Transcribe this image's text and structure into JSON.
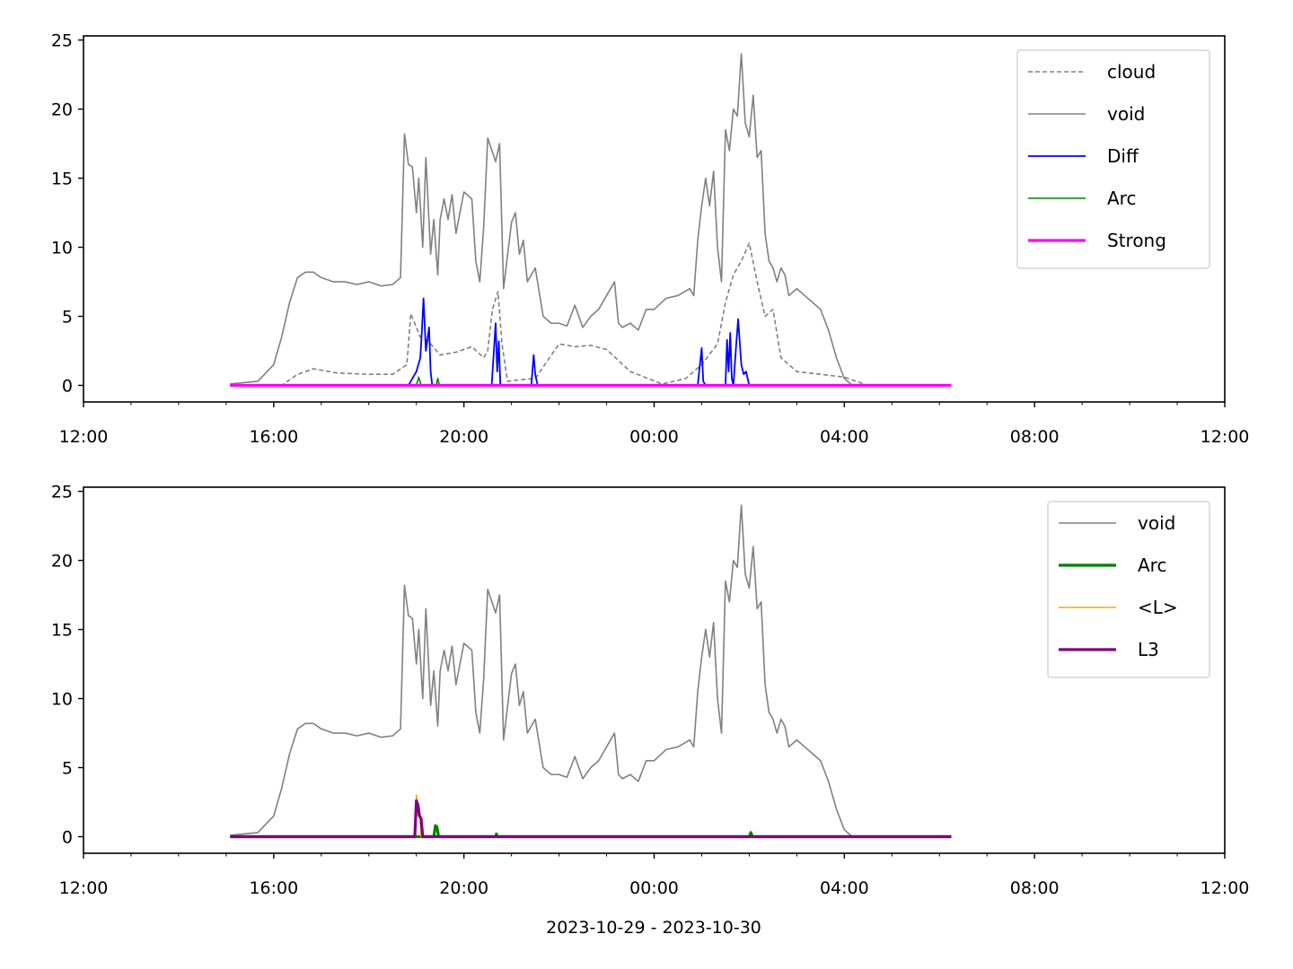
{
  "figure": {
    "xlabel": "2023-10-29 - 2023-10-30"
  },
  "chart_data": [
    {
      "type": "line",
      "xlabel": "",
      "ylabel": "",
      "xlim": [
        "2023-10-29 12:00",
        "2023-10-30 12:00"
      ],
      "ylim": [
        -1.2,
        25.3
      ],
      "xticks": [
        "12:00",
        "16:00",
        "20:00",
        "00:00",
        "04:00",
        "08:00",
        "12:00"
      ],
      "yticks": [
        0,
        5,
        10,
        15,
        20,
        25
      ],
      "legend_position": "top-right",
      "series": [
        {
          "name": "cloud",
          "color": "#808080",
          "style": "dashed",
          "x": [
            "15:05",
            "16:10",
            "16:30",
            "16:50",
            "17:20",
            "18:00",
            "18:30",
            "18:48",
            "18:53",
            "19:05",
            "19:15",
            "19:30",
            "19:50",
            "20:10",
            "20:25",
            "20:30",
            "20:36",
            "20:43",
            "20:48",
            "20:55",
            "21:10",
            "21:30",
            "22:00",
            "22:20",
            "22:40",
            "23:00",
            "23:30",
            "00:10",
            "00:40",
            "01:00",
            "01:20",
            "01:30",
            "01:40",
            "01:50",
            "02:00",
            "02:10",
            "02:20",
            "02:30",
            "02:40",
            "03:00",
            "03:30",
            "04:00",
            "04:30",
            "06:15"
          ],
          "y": [
            0.0,
            0.0,
            0.8,
            1.2,
            0.9,
            0.8,
            0.8,
            1.5,
            5.2,
            3.5,
            3.2,
            2.2,
            2.4,
            2.8,
            2.0,
            2.5,
            5.5,
            6.8,
            3.0,
            0.3,
            0.4,
            0.5,
            3.0,
            2.8,
            2.9,
            2.6,
            1.0,
            0.1,
            0.5,
            1.5,
            3.0,
            6.0,
            8.0,
            9.0,
            10.3,
            7.5,
            5.0,
            5.5,
            2.0,
            1.0,
            0.8,
            0.6,
            0.0,
            0.0
          ]
        },
        {
          "name": "void",
          "color": "#808080",
          "style": "solid",
          "x": [
            "15:05",
            "15:40",
            "16:00",
            "16:10",
            "16:20",
            "16:30",
            "16:40",
            "16:50",
            "17:00",
            "17:15",
            "17:30",
            "17:45",
            "18:00",
            "18:15",
            "18:30",
            "18:40",
            "18:45",
            "18:50",
            "18:55",
            "19:00",
            "19:03",
            "19:08",
            "19:12",
            "19:18",
            "19:22",
            "19:27",
            "19:30",
            "19:35",
            "19:40",
            "19:45",
            "19:50",
            "20:00",
            "20:10",
            "20:15",
            "20:20",
            "20:25",
            "20:30",
            "20:40",
            "20:45",
            "20:50",
            "21:00",
            "21:05",
            "21:10",
            "21:15",
            "21:20",
            "21:30",
            "21:40",
            "21:50",
            "22:00",
            "22:10",
            "22:20",
            "22:30",
            "22:40",
            "22:50",
            "23:00",
            "23:10",
            "23:15",
            "23:20",
            "23:30",
            "23:40",
            "23:50",
            "00:00",
            "00:15",
            "00:30",
            "00:45",
            "00:50",
            "00:55",
            "01:00",
            "01:05",
            "01:10",
            "01:15",
            "01:20",
            "01:25",
            "01:30",
            "01:35",
            "01:40",
            "01:45",
            "01:50",
            "01:55",
            "02:00",
            "02:05",
            "02:10",
            "02:15",
            "02:20",
            "02:25",
            "02:30",
            "02:35",
            "02:40",
            "02:45",
            "02:50",
            "03:00",
            "03:10",
            "03:20",
            "03:30",
            "03:40",
            "03:50",
            "04:00",
            "04:10",
            "04:20",
            "04:30",
            "04:40",
            "04:50",
            "05:00",
            "05:15",
            "05:30",
            "06:15"
          ],
          "y": [
            0.1,
            0.3,
            1.5,
            3.5,
            6.0,
            7.8,
            8.2,
            8.2,
            7.8,
            7.5,
            7.5,
            7.3,
            7.5,
            7.2,
            7.3,
            7.8,
            18.2,
            16.0,
            15.8,
            12.5,
            15.0,
            10.0,
            16.5,
            9.5,
            12.0,
            8.0,
            12.0,
            13.5,
            12.0,
            13.8,
            11.0,
            14.0,
            13.5,
            9.0,
            7.5,
            11.5,
            17.9,
            16.2,
            17.5,
            7.0,
            11.8,
            12.5,
            9.5,
            10.5,
            7.5,
            8.5,
            5.0,
            4.5,
            4.5,
            4.3,
            5.8,
            4.2,
            5.0,
            5.5,
            6.5,
            7.5,
            4.5,
            4.2,
            4.5,
            4.0,
            5.5,
            5.5,
            6.3,
            6.5,
            7.0,
            6.5,
            10.5,
            13.0,
            15.0,
            13.0,
            15.5,
            10.0,
            7.5,
            18.5,
            17.0,
            20.0,
            19.5,
            24.0,
            19.0,
            18.0,
            21.0,
            16.5,
            17.0,
            11.0,
            9.0,
            8.5,
            7.5,
            8.5,
            8.0,
            6.5,
            7.0,
            6.5,
            6.0,
            5.5,
            4.0,
            2.0,
            0.5,
            0.0,
            0.0,
            0.0,
            0.0,
            0.0,
            0.0,
            0.0,
            0.0,
            0.0
          ]
        },
        {
          "name": "Diff",
          "color": "#0000ff",
          "style": "solid",
          "x": [
            "15:05",
            "18:50",
            "18:55",
            "19:00",
            "19:05",
            "19:07",
            "19:09",
            "19:12",
            "19:16",
            "19:18",
            "19:20",
            "19:25",
            "20:35",
            "20:40",
            "20:42",
            "20:44",
            "20:46",
            "20:50",
            "21:25",
            "21:28",
            "21:30",
            "21:33",
            "00:55",
            "01:00",
            "01:02",
            "01:05",
            "01:30",
            "01:32",
            "01:34",
            "01:36",
            "01:38",
            "01:40",
            "01:43",
            "01:46",
            "01:50",
            "01:53",
            "01:56",
            "02:00",
            "02:03",
            "06:15"
          ],
          "y": [
            0.0,
            0.0,
            0.5,
            1.0,
            2.0,
            4.0,
            6.3,
            2.5,
            4.2,
            1.0,
            0.0,
            0.0,
            0.0,
            4.5,
            1.0,
            3.2,
            0.0,
            0.0,
            0.0,
            2.2,
            0.8,
            0.0,
            0.0,
            2.7,
            0.3,
            0.0,
            0.0,
            3.3,
            1.0,
            3.8,
            0.5,
            0.0,
            2.5,
            4.8,
            1.5,
            0.8,
            1.0,
            0.0,
            0.0,
            0.0
          ]
        },
        {
          "name": "Arc",
          "color": "#008000",
          "style": "solid",
          "x": [
            "15:05",
            "19:00",
            "19:03",
            "19:06",
            "19:25",
            "19:27",
            "19:29",
            "06:15"
          ],
          "y": [
            0.0,
            0.0,
            0.6,
            0.0,
            0.0,
            0.5,
            0.0,
            0.0
          ]
        },
        {
          "name": "Strong",
          "color": "#ff00ff",
          "style": "solid",
          "x": [
            "15:05",
            "06:15"
          ],
          "y": [
            0.0,
            0.0
          ]
        }
      ]
    },
    {
      "type": "line",
      "xlabel": "2023-10-29 - 2023-10-30",
      "ylabel": "",
      "xlim": [
        "2023-10-29 12:00",
        "2023-10-30 12:00"
      ],
      "ylim": [
        -1.2,
        25.3
      ],
      "xticks": [
        "12:00",
        "16:00",
        "20:00",
        "00:00",
        "04:00",
        "08:00",
        "12:00"
      ],
      "yticks": [
        0,
        5,
        10,
        15,
        20,
        25
      ],
      "legend_position": "top-right",
      "series": [
        {
          "name": "void",
          "color": "#808080",
          "style": "solid",
          "x": [
            "15:05",
            "15:40",
            "16:00",
            "16:10",
            "16:20",
            "16:30",
            "16:40",
            "16:50",
            "17:00",
            "17:15",
            "17:30",
            "17:45",
            "18:00",
            "18:15",
            "18:30",
            "18:40",
            "18:45",
            "18:50",
            "18:55",
            "19:00",
            "19:03",
            "19:08",
            "19:12",
            "19:18",
            "19:22",
            "19:27",
            "19:30",
            "19:35",
            "19:40",
            "19:45",
            "19:50",
            "20:00",
            "20:10",
            "20:15",
            "20:20",
            "20:25",
            "20:30",
            "20:40",
            "20:45",
            "20:50",
            "21:00",
            "21:05",
            "21:10",
            "21:15",
            "21:20",
            "21:30",
            "21:40",
            "21:50",
            "22:00",
            "22:10",
            "22:20",
            "22:30",
            "22:40",
            "22:50",
            "23:00",
            "23:10",
            "23:15",
            "23:20",
            "23:30",
            "23:40",
            "23:50",
            "00:00",
            "00:15",
            "00:30",
            "00:45",
            "00:50",
            "00:55",
            "01:00",
            "01:05",
            "01:10",
            "01:15",
            "01:20",
            "01:25",
            "01:30",
            "01:35",
            "01:40",
            "01:45",
            "01:50",
            "01:55",
            "02:00",
            "02:05",
            "02:10",
            "02:15",
            "02:20",
            "02:25",
            "02:30",
            "02:35",
            "02:40",
            "02:45",
            "02:50",
            "03:00",
            "03:10",
            "03:20",
            "03:30",
            "03:40",
            "03:50",
            "04:00",
            "04:10",
            "04:20",
            "04:30",
            "04:40",
            "04:50",
            "05:00",
            "05:15",
            "05:30",
            "06:15"
          ],
          "y": [
            0.1,
            0.3,
            1.5,
            3.5,
            6.0,
            7.8,
            8.2,
            8.2,
            7.8,
            7.5,
            7.5,
            7.3,
            7.5,
            7.2,
            7.3,
            7.8,
            18.2,
            16.0,
            15.8,
            12.5,
            15.0,
            10.0,
            16.5,
            9.5,
            12.0,
            8.0,
            12.0,
            13.5,
            12.0,
            13.8,
            11.0,
            14.0,
            13.5,
            9.0,
            7.5,
            11.5,
            17.9,
            16.2,
            17.5,
            7.0,
            11.8,
            12.5,
            9.5,
            10.5,
            7.5,
            8.5,
            5.0,
            4.5,
            4.5,
            4.3,
            5.8,
            4.2,
            5.0,
            5.5,
            6.5,
            7.5,
            4.5,
            4.2,
            4.5,
            4.0,
            5.5,
            5.5,
            6.3,
            6.5,
            7.0,
            6.5,
            10.5,
            13.0,
            15.0,
            13.0,
            15.5,
            10.0,
            7.5,
            18.5,
            17.0,
            20.0,
            19.5,
            24.0,
            19.0,
            18.0,
            21.0,
            16.5,
            17.0,
            11.0,
            9.0,
            8.5,
            7.5,
            8.5,
            8.0,
            6.5,
            7.0,
            6.5,
            6.0,
            5.5,
            4.0,
            2.0,
            0.5,
            0.0,
            0.0,
            0.0,
            0.0,
            0.0,
            0.0,
            0.0,
            0.0,
            0.0
          ]
        },
        {
          "name": "Arc",
          "color": "#008000",
          "style": "solid",
          "x": [
            "15:05",
            "19:22",
            "19:24",
            "19:26",
            "19:28",
            "20:40",
            "20:41",
            "20:42",
            "02:00",
            "02:02",
            "02:04",
            "06:15"
          ],
          "y": [
            0.0,
            0.0,
            0.8,
            0.7,
            0.0,
            0.0,
            0.2,
            0.0,
            0.0,
            0.3,
            0.0,
            0.0
          ]
        },
        {
          "name": "<L>",
          "color": "#ffa500",
          "style": "solid",
          "x": [
            "15:05",
            "18:58",
            "19:00",
            "19:02",
            "19:04",
            "19:06",
            "06:15"
          ],
          "y": [
            0.0,
            0.0,
            3.0,
            1.5,
            2.0,
            0.0,
            0.0
          ]
        },
        {
          "name": "L3",
          "color": "#800080",
          "style": "solid",
          "x": [
            "15:05",
            "18:58",
            "19:00",
            "19:02",
            "19:04",
            "19:06",
            "19:08",
            "06:15"
          ],
          "y": [
            0.0,
            0.0,
            2.6,
            2.3,
            1.5,
            1.3,
            0.0,
            0.0
          ]
        }
      ]
    }
  ]
}
